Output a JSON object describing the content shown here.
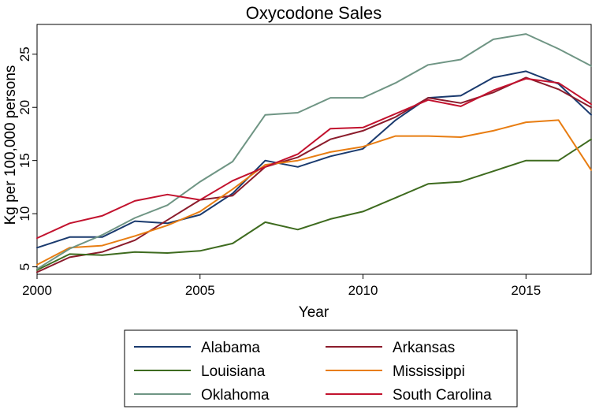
{
  "chart_data": {
    "type": "line",
    "title": "Oxycodone Sales",
    "xlabel": "Year",
    "ylabel": "Kg per 100,000 persons",
    "xlim": [
      2000,
      2017
    ],
    "ylim": [
      4.3,
      27.8
    ],
    "x_ticks": [
      2000,
      2005,
      2010,
      2015
    ],
    "y_ticks": [
      5,
      10,
      15,
      20,
      25
    ],
    "grid": false,
    "legend_position": "bottom",
    "x": [
      2000,
      2001,
      2002,
      2003,
      2004,
      2005,
      2006,
      2007,
      2008,
      2009,
      2010,
      2011,
      2012,
      2013,
      2014,
      2015,
      2016,
      2017
    ],
    "series": [
      {
        "name": "Alabama",
        "color": "#1a3a6e",
        "values": [
          6.8,
          7.8,
          7.8,
          9.3,
          9.1,
          9.9,
          11.9,
          15.0,
          14.4,
          15.4,
          16.1,
          18.8,
          20.9,
          21.1,
          22.8,
          23.4,
          22.2,
          19.3
        ]
      },
      {
        "name": "Arkansas",
        "color": "#8b1c2c",
        "values": [
          4.5,
          5.9,
          6.4,
          7.5,
          9.4,
          11.3,
          11.7,
          14.4,
          15.3,
          17.0,
          17.8,
          19.1,
          20.9,
          20.4,
          21.4,
          22.8,
          21.7,
          20.0
        ]
      },
      {
        "name": "Louisiana",
        "color": "#3e6b1f",
        "values": [
          4.7,
          6.2,
          6.1,
          6.4,
          6.3,
          6.5,
          7.2,
          9.2,
          8.5,
          9.5,
          10.2,
          11.5,
          12.8,
          13.0,
          14.0,
          15.0,
          15.0,
          17.0
        ]
      },
      {
        "name": "Mississippi",
        "color": "#e87d12",
        "values": [
          5.2,
          6.8,
          7.0,
          7.9,
          8.9,
          10.2,
          12.3,
          14.6,
          15.0,
          15.8,
          16.3,
          17.3,
          17.3,
          17.2,
          17.8,
          18.6,
          18.8,
          14.1
        ]
      },
      {
        "name": "Oklahoma",
        "color": "#6f9584",
        "values": [
          4.8,
          6.7,
          8.0,
          9.6,
          10.8,
          13.0,
          14.9,
          19.3,
          19.5,
          20.9,
          20.9,
          22.3,
          24.0,
          24.5,
          26.4,
          26.9,
          25.5,
          23.9
        ]
      },
      {
        "name": "South Carolina",
        "color": "#c2122e",
        "values": [
          7.7,
          9.1,
          9.8,
          11.2,
          11.8,
          11.3,
          13.1,
          14.4,
          15.6,
          18.0,
          18.1,
          19.4,
          20.7,
          20.1,
          21.6,
          22.7,
          22.3,
          20.3
        ]
      }
    ],
    "legend_order": [
      0,
      1,
      2,
      3,
      4,
      5
    ]
  }
}
